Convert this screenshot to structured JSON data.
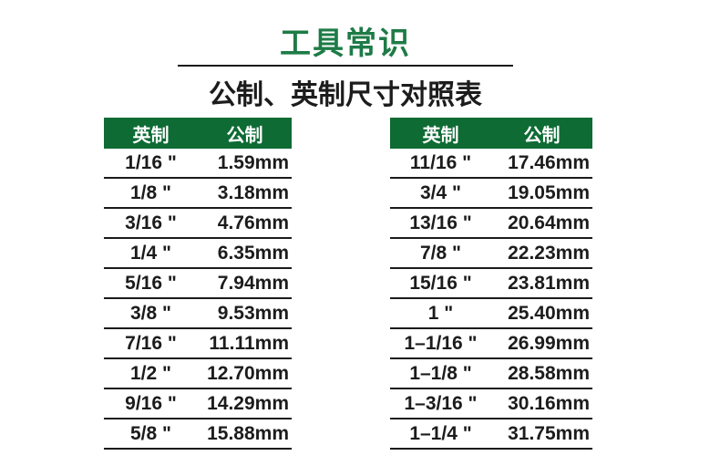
{
  "title": "工具常识",
  "subtitle": "公制、英制尺寸对照表",
  "colors": {
    "header_bg": "#0e6b34",
    "header_text": "#ffffff",
    "title_green": "#1e7b46",
    "line": "#1a1a1a",
    "text": "#1c1c1c",
    "background": "#ffffff"
  },
  "columns": {
    "imperial": "英制",
    "metric": "公制"
  },
  "tables": [
    {
      "rows": [
        {
          "inch": "1/16 \"",
          "mm": "1.59mm"
        },
        {
          "inch": "1/8 \"",
          "mm": "3.18mm"
        },
        {
          "inch": "3/16 \"",
          "mm": "4.76mm"
        },
        {
          "inch": "1/4 \"",
          "mm": "6.35mm"
        },
        {
          "inch": "5/16 \"",
          "mm": "7.94mm"
        },
        {
          "inch": "3/8 \"",
          "mm": "9.53mm"
        },
        {
          "inch": "7/16 \"",
          "mm": "11.11mm"
        },
        {
          "inch": "1/2 \"",
          "mm": "12.70mm"
        },
        {
          "inch": "9/16 \"",
          "mm": "14.29mm"
        },
        {
          "inch": "5/8 \"",
          "mm": "15.88mm"
        }
      ]
    },
    {
      "rows": [
        {
          "inch": "11/16 \"",
          "mm": "17.46mm"
        },
        {
          "inch": "3/4 \"",
          "mm": "19.05mm"
        },
        {
          "inch": "13/16 \"",
          "mm": "20.64mm"
        },
        {
          "inch": "7/8 \"",
          "mm": "22.23mm"
        },
        {
          "inch": "15/16 \"",
          "mm": "23.81mm"
        },
        {
          "inch": "1 \"",
          "mm": "25.40mm"
        },
        {
          "inch": "1–1/16 \"",
          "mm": "26.99mm"
        },
        {
          "inch": "1–1/8 \"",
          "mm": "28.58mm"
        },
        {
          "inch": "1–3/16 \"",
          "mm": "30.16mm"
        },
        {
          "inch": "1–1/4 \"",
          "mm": "31.75mm"
        }
      ]
    }
  ]
}
